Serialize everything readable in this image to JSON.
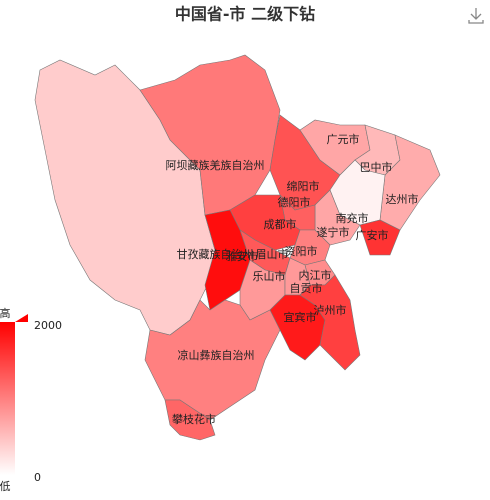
{
  "title": "中国省-市 二级下钻",
  "visual_map": {
    "max": 2000,
    "min": 0,
    "high_label": "高",
    "low_label": "低",
    "color_high": "#ff0000",
    "color_low": "#ffffff"
  },
  "regions": [
    {
      "name": "甘孜藏族自治州",
      "value": 400
    },
    {
      "name": "阿坝藏族羌族自治州",
      "value": 1050
    },
    {
      "name": "绵阳市",
      "value": 1350
    },
    {
      "name": "广元市",
      "value": 700
    },
    {
      "name": "巴中市",
      "value": 550
    },
    {
      "name": "达州市",
      "value": 650
    },
    {
      "name": "南充市",
      "value": 100
    },
    {
      "name": "广安市",
      "value": 1600
    },
    {
      "name": "遂宁市",
      "value": 700
    },
    {
      "name": "德阳市",
      "value": 1250
    },
    {
      "name": "成都市",
      "value": 1500
    },
    {
      "name": "资阳市",
      "value": 1000
    },
    {
      "name": "眉山市",
      "value": 1300
    },
    {
      "name": "雅安市",
      "value": 1900
    },
    {
      "name": "乐山市",
      "value": 800
    },
    {
      "name": "内江市",
      "value": 900
    },
    {
      "name": "自贡市",
      "value": 800
    },
    {
      "name": "宜宾市",
      "value": 1800
    },
    {
      "name": "泸州市",
      "value": 1500
    },
    {
      "name": "凉山彝族自治州",
      "value": 1000
    },
    {
      "name": "攀枝花市",
      "value": 1200
    }
  ]
}
